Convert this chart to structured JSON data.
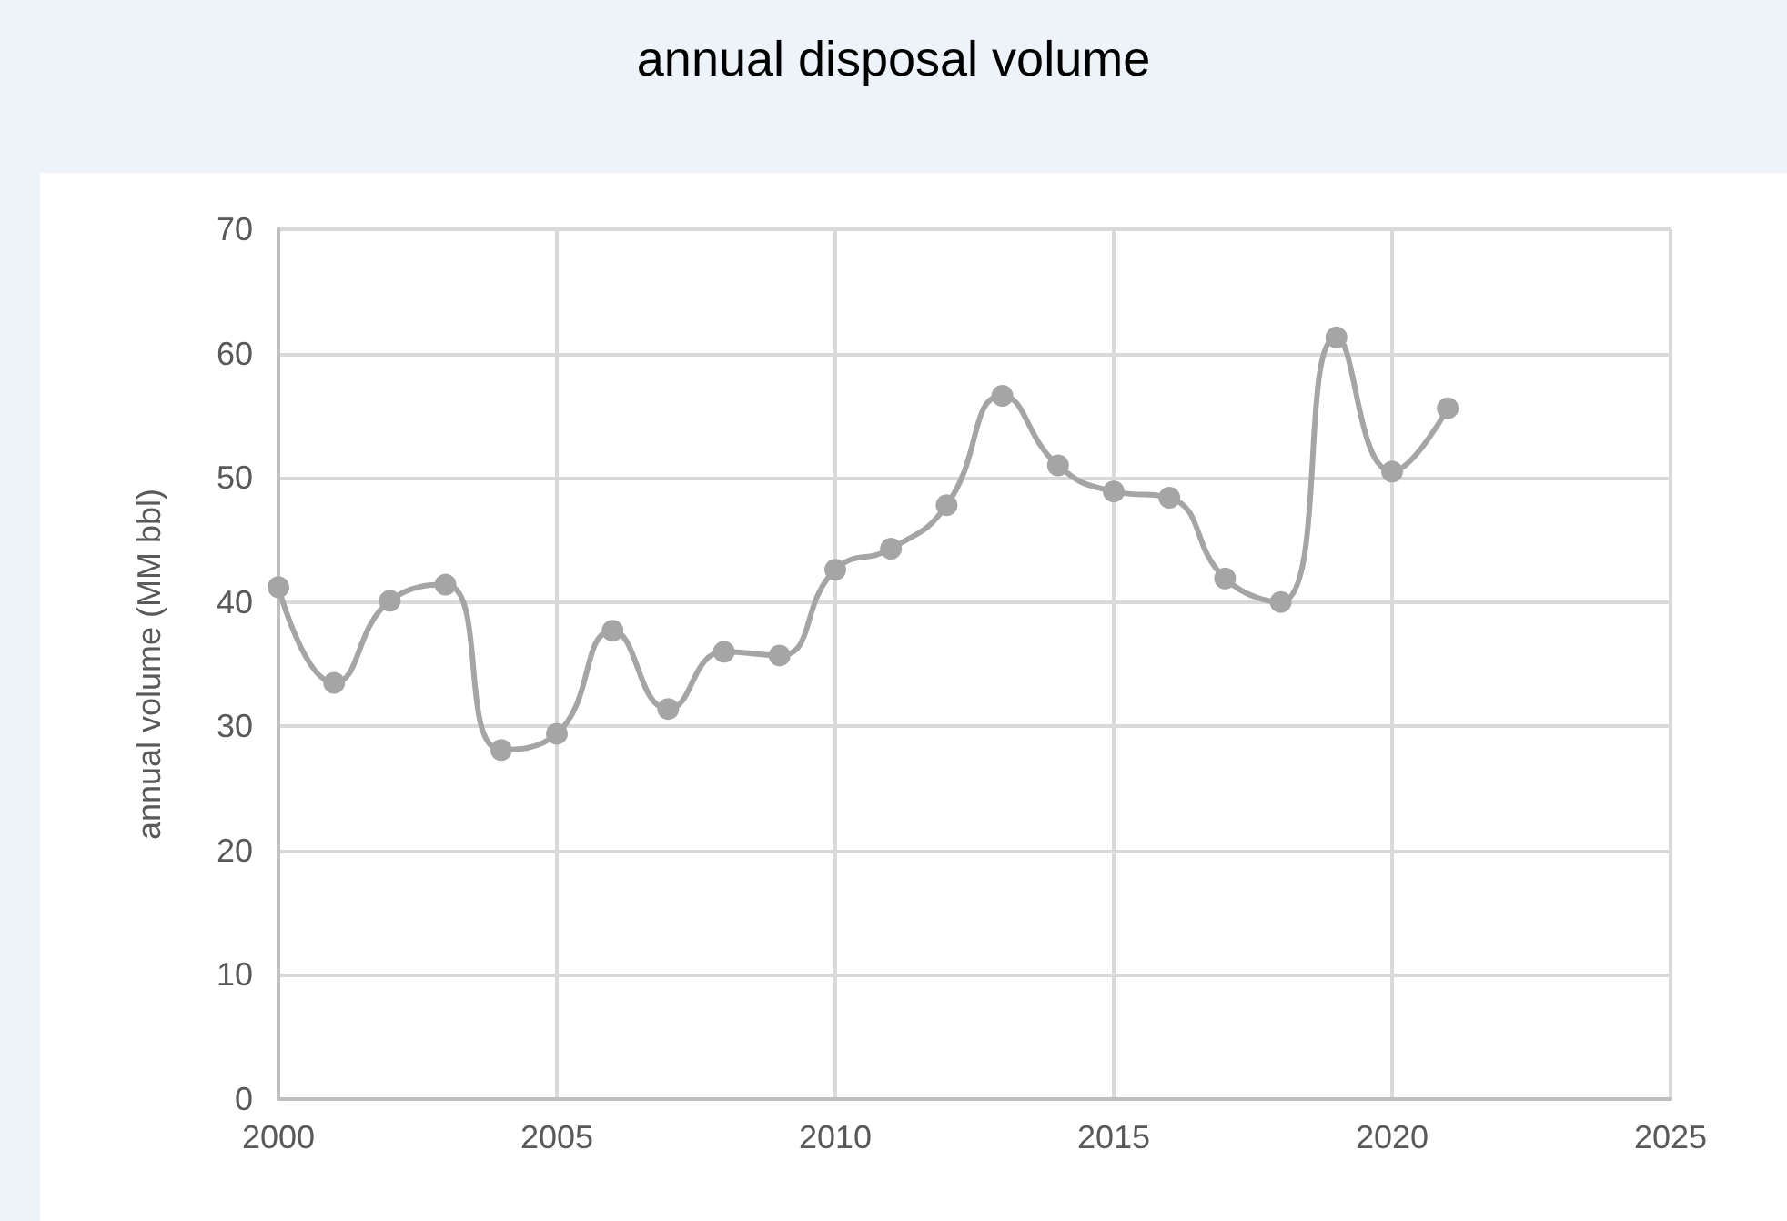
{
  "chart_data": {
    "type": "line",
    "title": "annual disposal volume",
    "ylabel": "annual volume (MM bbl)",
    "x": [
      2000,
      2001,
      2002,
      2003,
      2004,
      2005,
      2006,
      2007,
      2008,
      2009,
      2010,
      2011,
      2012,
      2013,
      2014,
      2015,
      2016,
      2017,
      2018,
      2019,
      2020,
      2021
    ],
    "series": [
      {
        "color": "#a5a5a5",
        "values": [
          41.2,
          33.5,
          40.1,
          41.4,
          28.1,
          29.4,
          37.7,
          31.4,
          36.0,
          35.7,
          42.6,
          44.3,
          47.8,
          56.6,
          51.0,
          48.9,
          48.4,
          41.9,
          40.0,
          61.3,
          50.5,
          55.6
        ]
      }
    ],
    "xlim": [
      2000,
      2025
    ],
    "xticks": [
      2000,
      2005,
      2010,
      2015,
      2020,
      2025
    ],
    "ylim": [
      0,
      70
    ],
    "yticks": [
      0,
      10,
      20,
      30,
      40,
      50,
      60,
      70
    ],
    "grid": true,
    "marker": "circle",
    "line_style": "solid"
  }
}
